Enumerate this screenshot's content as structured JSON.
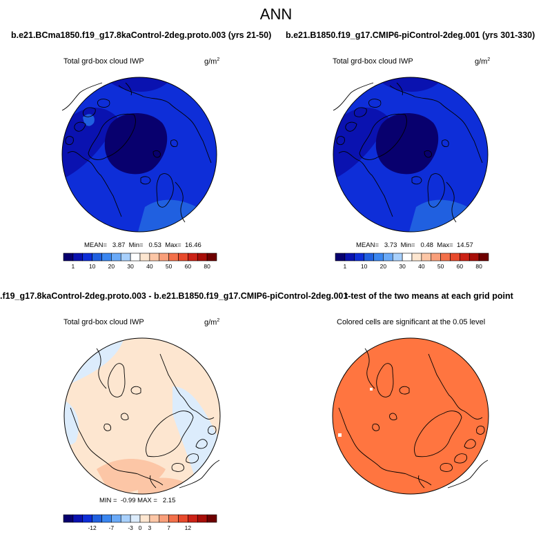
{
  "title": "ANN",
  "colors": {
    "blue_scale": [
      "#08006e",
      "#0a12b0",
      "#0e2ed8",
      "#2060e0",
      "#3a86f0",
      "#6aaaf8",
      "#a8d0fc",
      "#ffffff"
    ],
    "red_scale": [
      "#fde6d0",
      "#fcc6a6",
      "#f99f7a",
      "#f3704a",
      "#e84a2c",
      "#cc2216",
      "#a80e08",
      "#6e0000"
    ],
    "signif_fill": "#ff7540"
  },
  "panels": {
    "p1": {
      "title": "b.e21.BCma1850.f19_g17.8kaControl-2deg.proto.003 (yrs 21-50)",
      "field": "Total grd-box cloud IWP",
      "units": "g/m",
      "units_exp": "2",
      "stats": "MEAN=   3.87  Min=   0.53  Max=  16.46",
      "colorbar_ticks": [
        "1",
        "10",
        "20",
        "30",
        "40",
        "50",
        "60",
        "80"
      ]
    },
    "p2": {
      "title": "b.e21.B1850.f19_g17.CMIP6-piControl-2deg.001 (yrs 301-330)",
      "field": "Total grd-box cloud IWP",
      "units": "g/m",
      "units_exp": "2",
      "stats": "MEAN=   3.73  Min=   0.48  Max=  14.57",
      "colorbar_ticks": [
        "1",
        "10",
        "20",
        "30",
        "40",
        "50",
        "60",
        "80"
      ]
    },
    "p3": {
      "title": ".f19_g17.8kaControl-2deg.proto.003 - b.e21.B1850.f19_g17.CMIP6-piControl-2deg.001",
      "field": "Total grd-box cloud IWP",
      "units": "g/m",
      "units_exp": "2",
      "stats": "MIN =  -0.99 MAX =   2.15",
      "colorbar_ticks": [
        "-12",
        "-7",
        "-3",
        "0",
        "3",
        "7",
        "12"
      ]
    },
    "p4": {
      "title": "t-test of the two means at each grid point",
      "subtitle": "Colored cells are significant at the 0.05 level"
    }
  }
}
